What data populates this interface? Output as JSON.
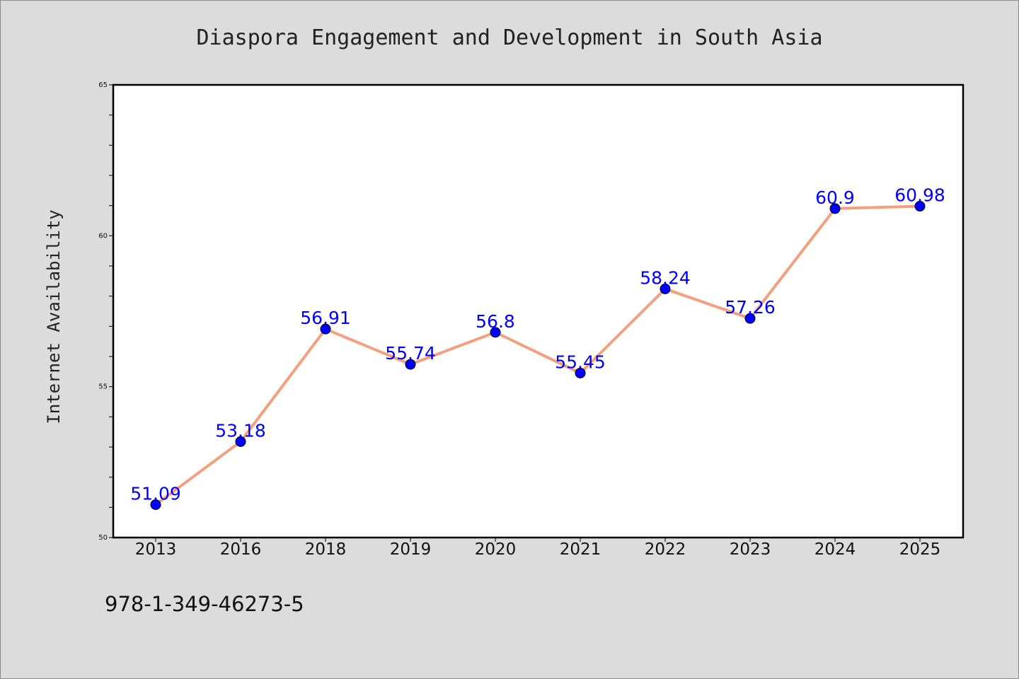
{
  "chart_data": {
    "type": "line",
    "title": "Diaspora Engagement and Development in South Asia",
    "xlabel": "",
    "ylabel": "Internet Availability",
    "categories": [
      "2013",
      "2016",
      "2018",
      "2019",
      "2020",
      "2021",
      "2022",
      "2023",
      "2024",
      "2025"
    ],
    "series": [
      {
        "values": [
          51.09,
          53.18,
          56.91,
          55.74,
          56.8,
          55.45,
          58.24,
          57.26,
          60.9,
          60.98
        ],
        "data_labels": [
          "51.09",
          "53.18",
          "56.91",
          "55.74",
          "56.8",
          "55.45",
          "58.24",
          "57.26",
          "60.9",
          "60.98"
        ]
      }
    ],
    "ylim": [
      50,
      65
    ],
    "yticks": [
      50,
      55,
      60,
      65
    ],
    "ytick_labels": [
      "50",
      "55",
      "60",
      "65"
    ],
    "y_minor_step": 1,
    "grid": false,
    "legend": "none",
    "colors": {
      "line": "#f4a07f",
      "marker": "#0000ff",
      "data_label": "#0000ff",
      "plot_background": "#ffffff",
      "figure_background": "#dcdcdc"
    }
  },
  "footer": {
    "isbn": "978-1-349-46273-5"
  }
}
